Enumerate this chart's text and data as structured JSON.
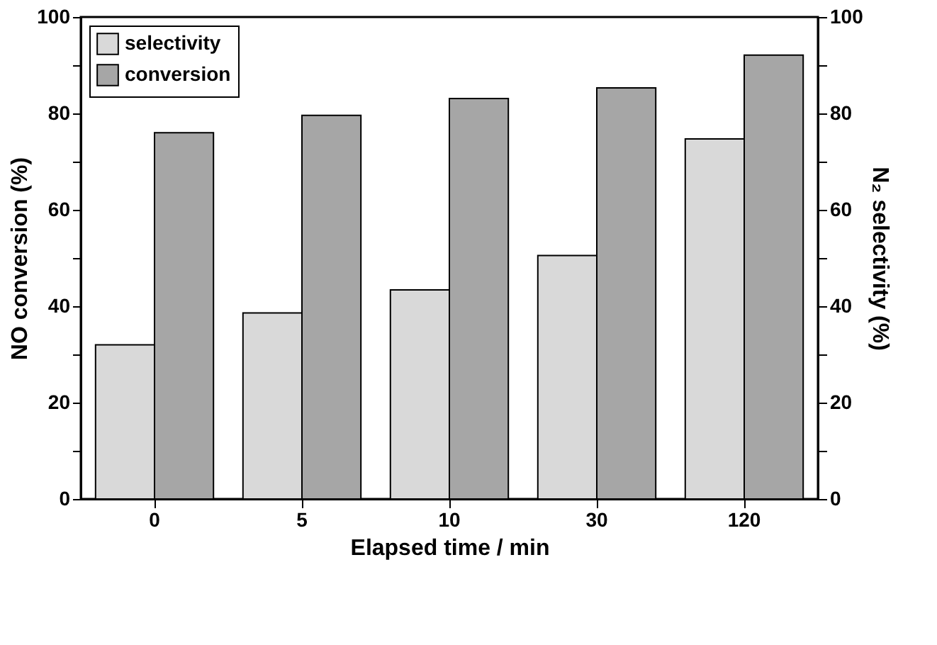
{
  "chart_data": {
    "type": "bar",
    "xlabel": "Elapsed time / min",
    "ylabel": "NO conversion (%)",
    "y2label": "N₂ selectivity (%)",
    "categories": [
      "0",
      "5",
      "10",
      "30",
      "120"
    ],
    "series": [
      {
        "name": "selectivity",
        "color": "#d9d9d9",
        "axis": "y2",
        "values": [
          32.0,
          38.6,
          43.4,
          50.5,
          74.7
        ]
      },
      {
        "name": "conversion",
        "color": "#a6a6a6",
        "values": [
          76.0,
          79.6,
          83.1,
          85.3,
          92.1
        ]
      }
    ],
    "ylim": [
      0,
      100
    ],
    "yticks": [
      0,
      {
        "value": 10,
        "label": null
      },
      20,
      {
        "value": 30,
        "label": null
      },
      40,
      {
        "value": 50,
        "label": null
      },
      60,
      {
        "value": 70,
        "label": null
      },
      80,
      {
        "value": 90,
        "label": null
      },
      100
    ],
    "y2lim": [
      0,
      100
    ],
    "y2ticks": [
      0,
      {
        "value": 10,
        "label": null
      },
      20,
      {
        "value": 30,
        "label": null
      },
      40,
      {
        "value": 50,
        "label": null
      },
      60,
      {
        "value": 70,
        "label": null
      },
      80,
      {
        "value": 90,
        "label": null
      },
      100
    ],
    "grid": false,
    "legend": "top left"
  }
}
